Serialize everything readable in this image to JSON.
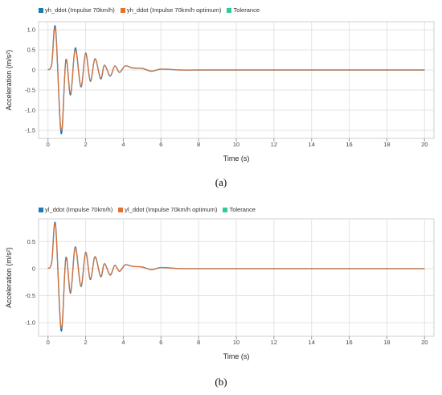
{
  "chart_data": [
    {
      "type": "line",
      "panel_label": "(a)",
      "xlabel": "Time (s)",
      "ylabel": "Acceleration (m/s²)",
      "xlim": [
        -0.5,
        20.5
      ],
      "ylim": [
        -1.7,
        1.2
      ],
      "xticks": [
        0,
        2,
        4,
        6,
        8,
        10,
        12,
        14,
        16,
        18,
        20
      ],
      "yticks": [
        1.0,
        0.5,
        0,
        -0.5,
        -1.0,
        -1.5
      ],
      "ytick_labels": [
        "1.0",
        "0.5",
        "0",
        "-0.5",
        "-1.0",
        "-1.5"
      ],
      "grid": true,
      "legend_position": "top-left",
      "series": [
        {
          "name": "yh_ddot (Impulse 70km/h)",
          "color": "#1f77b4",
          "x": [
            0,
            0.2,
            0.4,
            0.7,
            0.95,
            1.2,
            1.45,
            1.75,
            2.0,
            2.25,
            2.5,
            2.8,
            3.0,
            3.3,
            3.55,
            3.8,
            4.1,
            4.5,
            5.0,
            5.5,
            6.0,
            7,
            8,
            10,
            12,
            14,
            16,
            18,
            20
          ],
          "y": [
            0,
            0.15,
            1.05,
            -1.58,
            0.25,
            -0.62,
            0.55,
            -0.42,
            0.42,
            -0.28,
            0.28,
            -0.22,
            0.12,
            -0.15,
            0.1,
            -0.06,
            0.1,
            0.05,
            0.04,
            -0.03,
            0.02,
            0.0,
            0.0,
            0.0,
            0.0,
            0.0,
            0.0,
            0.0,
            0.0
          ]
        },
        {
          "name": "yh_ddot (Impulse 70km/h optimum)",
          "color": "#e8702a",
          "x": [
            0,
            0.2,
            0.4,
            0.7,
            0.95,
            1.2,
            1.45,
            1.75,
            2.0,
            2.25,
            2.5,
            2.8,
            3.0,
            3.3,
            3.55,
            3.8,
            4.1,
            4.5,
            5.0,
            5.5,
            6.0,
            7,
            8,
            10,
            12,
            14,
            16,
            18,
            20
          ],
          "y": [
            0,
            0.15,
            1.0,
            -1.5,
            0.22,
            -0.58,
            0.5,
            -0.4,
            0.4,
            -0.26,
            0.27,
            -0.2,
            0.12,
            -0.14,
            0.1,
            -0.06,
            0.1,
            0.05,
            0.04,
            -0.03,
            0.02,
            0.0,
            0.0,
            0.0,
            0.0,
            0.0,
            0.0,
            0.0,
            0.0
          ]
        },
        {
          "name": "Tolerance",
          "color": "#2ecc9a",
          "x": [],
          "y": []
        }
      ]
    },
    {
      "type": "line",
      "panel_label": "(b)",
      "xlabel": "Time (s)",
      "ylabel": "Acceleration (m/s²)",
      "xlim": [
        -0.5,
        20.5
      ],
      "ylim": [
        -1.25,
        0.92
      ],
      "xticks": [
        0,
        2,
        4,
        6,
        8,
        10,
        12,
        14,
        16,
        18,
        20
      ],
      "yticks": [
        0.5,
        0,
        -0.5,
        -1.0
      ],
      "ytick_labels": [
        "0.5",
        "0",
        "-0.5",
        "-1.0"
      ],
      "grid": true,
      "legend_position": "top-left",
      "series": [
        {
          "name": "yl_ddot (Impulse 70km/h)",
          "color": "#1f77b4",
          "x": [
            0,
            0.2,
            0.4,
            0.7,
            0.95,
            1.2,
            1.45,
            1.75,
            2.0,
            2.25,
            2.5,
            2.8,
            3.0,
            3.3,
            3.55,
            3.8,
            4.1,
            4.5,
            5.0,
            5.5,
            6.0,
            7,
            8,
            10,
            12,
            14,
            16,
            18,
            20
          ],
          "y": [
            0,
            0.12,
            0.82,
            -1.15,
            0.2,
            -0.45,
            0.4,
            -0.33,
            0.3,
            -0.2,
            0.22,
            -0.15,
            0.09,
            -0.12,
            0.06,
            -0.05,
            0.07,
            0.04,
            0.03,
            -0.02,
            0.02,
            0.0,
            0.0,
            0.0,
            0.0,
            0.0,
            0.0,
            0.0,
            0.0
          ]
        },
        {
          "name": "yl_ddot (Impulse 70km/h optimum)",
          "color": "#e8702a",
          "x": [
            0,
            0.2,
            0.4,
            0.7,
            0.95,
            1.2,
            1.45,
            1.75,
            2.0,
            2.25,
            2.5,
            2.8,
            3.0,
            3.3,
            3.55,
            3.8,
            4.1,
            4.5,
            5.0,
            5.5,
            6.0,
            7,
            8,
            10,
            12,
            14,
            16,
            18,
            20
          ],
          "y": [
            0,
            0.12,
            0.8,
            -1.1,
            0.18,
            -0.43,
            0.38,
            -0.32,
            0.29,
            -0.19,
            0.21,
            -0.14,
            0.09,
            -0.11,
            0.06,
            -0.05,
            0.07,
            0.04,
            0.03,
            -0.02,
            0.02,
            0.0,
            0.0,
            0.0,
            0.0,
            0.0,
            0.0,
            0.0,
            0.0
          ]
        },
        {
          "name": "Tolerance",
          "color": "#2ecc9a",
          "x": [],
          "y": []
        }
      ]
    }
  ]
}
